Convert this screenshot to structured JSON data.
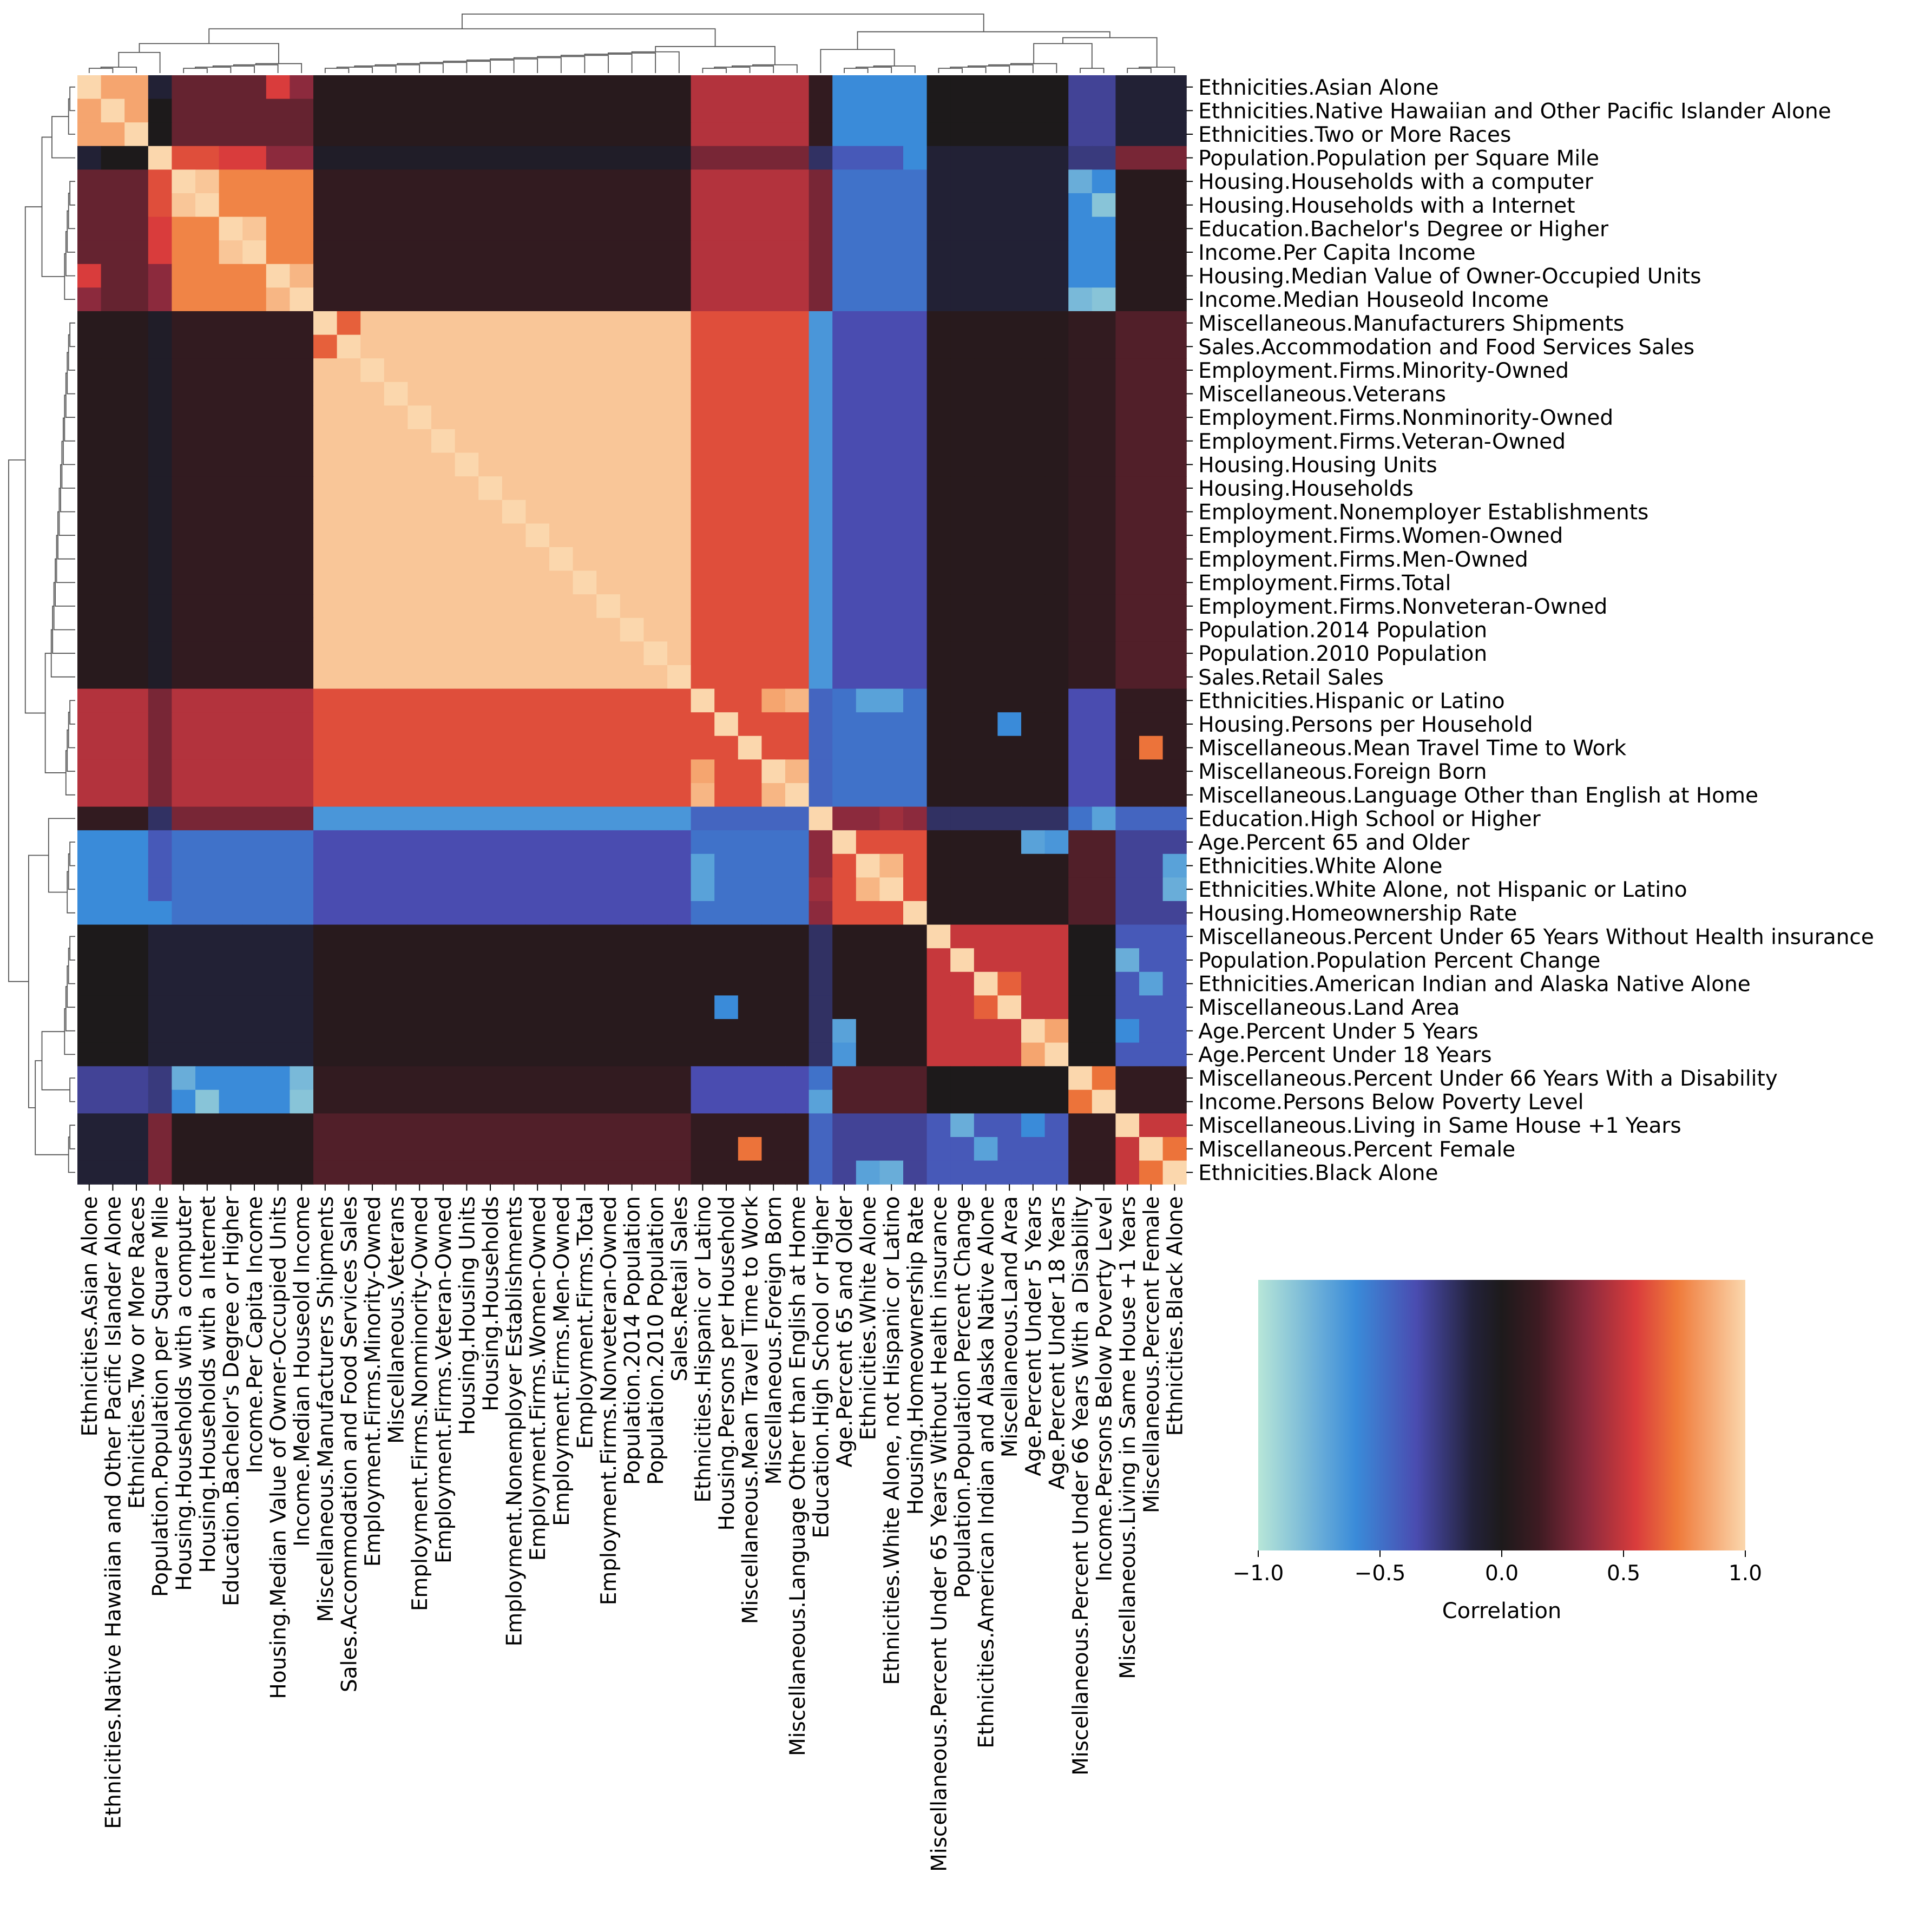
{
  "chart_data": {
    "type": "heatmap",
    "title": "",
    "labels": [
      "Ethnicities.Asian Alone",
      "Ethnicities.Native Hawaiian and Other Pacific Islander Alone",
      "Ethnicities.Two or More Races",
      "Population.Population per Square Mile",
      "Housing.Households with a computer",
      "Housing.Households with a Internet",
      "Education.Bachelor's Degree or Higher",
      "Income.Per Capita Income",
      "Housing.Median Value of Owner-Occupied Units",
      "Income.Median Houseold Income",
      "Miscellaneous.Manufacturers Shipments",
      "Sales.Accommodation and Food Services Sales",
      "Employment.Firms.Minority-Owned",
      "Miscellaneous.Veterans",
      "Employment.Firms.Nonminority-Owned",
      "Employment.Firms.Veteran-Owned",
      "Housing.Housing Units",
      "Housing.Households",
      "Employment.Nonemployer Establishments",
      "Employment.Firms.Women-Owned",
      "Employment.Firms.Men-Owned",
      "Employment.Firms.Total",
      "Employment.Firms.Nonveteran-Owned",
      "Population.2014 Population",
      "Population.2010 Population",
      "Sales.Retail Sales",
      "Ethnicities.Hispanic or Latino",
      "Housing.Persons per Household",
      "Miscellaneous.Mean Travel Time to Work",
      "Miscellaneous.Foreign Born",
      "Miscellaneous.Language Other than English at Home",
      "Education.High School or Higher",
      "Age.Percent 65 and Older",
      "Ethnicities.White Alone",
      "Ethnicities.White Alone, not Hispanic or Latino",
      "Housing.Homeownership Rate",
      "Miscellaneous.Percent Under 65 Years Without Health insurance",
      "Population.Population Percent Change",
      "Ethnicities.American Indian and Alaska Native Alone",
      "Miscellaneous.Land Area",
      "Age.Percent Under 5 Years",
      "Age.Percent Under 18 Years",
      "Miscellaneous.Percent Under 66 Years With a Disability",
      "Income.Persons Below Poverty Level",
      "Miscellaneous.Living in Same House +1 Years",
      "Miscellaneous.Percent Female",
      "Ethnicities.Black Alone"
    ],
    "groups": [
      {
        "indices": [
          0,
          1,
          2
        ],
        "within": 0.85,
        "default": 0.15
      },
      {
        "indices": [
          3
        ],
        "within": 1.0,
        "default": 0.0
      },
      {
        "indices": [
          4,
          5,
          6,
          7,
          8,
          9
        ],
        "within": 0.75,
        "default": 0.2
      },
      {
        "indices": [
          10,
          11,
          12,
          13,
          14,
          15,
          16,
          17,
          18,
          19,
          20,
          21,
          22,
          23,
          24,
          25
        ],
        "within": 0.95,
        "default": 0.2
      },
      {
        "indices": [
          26,
          27,
          28,
          29,
          30
        ],
        "within": 0.6,
        "default": 0.25
      },
      {
        "indices": [
          31
        ],
        "within": 1.0,
        "default": -0.3
      },
      {
        "indices": [
          32,
          33,
          34,
          35
        ],
        "within": 0.6,
        "default": -0.25
      },
      {
        "indices": [
          36,
          37,
          38,
          39,
          40,
          41
        ],
        "within": 0.5,
        "default": 0.1
      },
      {
        "indices": [
          42,
          43
        ],
        "within": 0.75,
        "default": -0.1
      },
      {
        "indices": [
          44,
          45,
          46
        ],
        "within": 0.5,
        "default": 0.1
      }
    ],
    "group_pairs": [
      {
        "a": 0,
        "b": 1,
        "value": 0.0
      },
      {
        "a": 0,
        "b": 2,
        "value": 0.25
      },
      {
        "a": 0,
        "b": 3,
        "value": 0.05
      },
      {
        "a": 0,
        "b": 4,
        "value": 0.45
      },
      {
        "a": 0,
        "b": 5,
        "value": 0.1
      },
      {
        "a": 0,
        "b": 6,
        "value": -0.6
      },
      {
        "a": 0,
        "b": 7,
        "value": 0.0
      },
      {
        "a": 0,
        "b": 8,
        "value": -0.3
      },
      {
        "a": 0,
        "b": 9,
        "value": -0.1
      },
      {
        "a": 1,
        "b": 2,
        "value": 0.6
      },
      {
        "a": 1,
        "b": 3,
        "value": -0.05
      },
      {
        "a": 1,
        "b": 4,
        "value": 0.3
      },
      {
        "a": 1,
        "b": 5,
        "value": -0.2
      },
      {
        "a": 1,
        "b": 6,
        "value": -0.4
      },
      {
        "a": 1,
        "b": 7,
        "value": -0.1
      },
      {
        "a": 1,
        "b": 8,
        "value": -0.25
      },
      {
        "a": 1,
        "b": 9,
        "value": 0.3
      },
      {
        "a": 2,
        "b": 3,
        "value": 0.1
      },
      {
        "a": 2,
        "b": 4,
        "value": 0.45
      },
      {
        "a": 2,
        "b": 5,
        "value": 0.3
      },
      {
        "a": 2,
        "b": 6,
        "value": -0.5
      },
      {
        "a": 2,
        "b": 7,
        "value": -0.1
      },
      {
        "a": 2,
        "b": 8,
        "value": -0.6
      },
      {
        "a": 2,
        "b": 9,
        "value": 0.05
      },
      {
        "a": 3,
        "b": 4,
        "value": 0.6
      },
      {
        "a": 3,
        "b": 5,
        "value": -0.65
      },
      {
        "a": 3,
        "b": 6,
        "value": -0.35
      },
      {
        "a": 3,
        "b": 7,
        "value": 0.05
      },
      {
        "a": 3,
        "b": 8,
        "value": 0.1
      },
      {
        "a": 3,
        "b": 9,
        "value": 0.2
      },
      {
        "a": 4,
        "b": 5,
        "value": -0.45
      },
      {
        "a": 4,
        "b": 6,
        "value": -0.5
      },
      {
        "a": 4,
        "b": 7,
        "value": 0.05
      },
      {
        "a": 4,
        "b": 8,
        "value": -0.35
      },
      {
        "a": 4,
        "b": 9,
        "value": 0.1
      },
      {
        "a": 5,
        "b": 6,
        "value": 0.35
      },
      {
        "a": 5,
        "b": 7,
        "value": -0.2
      },
      {
        "a": 5,
        "b": 8,
        "value": -0.5
      },
      {
        "a": 5,
        "b": 9,
        "value": -0.45
      },
      {
        "a": 6,
        "b": 7,
        "value": 0.05
      },
      {
        "a": 6,
        "b": 8,
        "value": 0.2
      },
      {
        "a": 6,
        "b": 9,
        "value": -0.3
      },
      {
        "a": 7,
        "b": 8,
        "value": 0.0
      },
      {
        "a": 7,
        "b": 9,
        "value": -0.4
      },
      {
        "a": 8,
        "b": 9,
        "value": 0.1
      }
    ],
    "cells": [
      {
        "r": 0,
        "c": 3,
        "value": -0.1
      },
      {
        "r": 0,
        "c": 8,
        "value": 0.55
      },
      {
        "r": 0,
        "c": 9,
        "value": 0.35
      },
      {
        "r": 3,
        "c": 6,
        "value": 0.55
      },
      {
        "r": 3,
        "c": 7,
        "value": 0.55
      },
      {
        "r": 3,
        "c": 8,
        "value": 0.35
      },
      {
        "r": 3,
        "c": 9,
        "value": 0.35
      },
      {
        "r": 3,
        "c": 35,
        "value": -0.6
      },
      {
        "r": 4,
        "c": 5,
        "value": 0.95
      },
      {
        "r": 6,
        "c": 7,
        "value": 0.95
      },
      {
        "r": 8,
        "c": 9,
        "value": 0.9
      },
      {
        "r": 4,
        "c": 42,
        "value": -0.75
      },
      {
        "r": 5,
        "c": 43,
        "value": -0.85
      },
      {
        "r": 9,
        "c": 42,
        "value": -0.8
      },
      {
        "r": 9,
        "c": 43,
        "value": -0.85
      },
      {
        "r": 10,
        "c": 11,
        "value": 0.65
      },
      {
        "r": 26,
        "c": 29,
        "value": 0.85
      },
      {
        "r": 26,
        "c": 30,
        "value": 0.9
      },
      {
        "r": 29,
        "c": 30,
        "value": 0.9
      },
      {
        "r": 26,
        "c": 33,
        "value": -0.7
      },
      {
        "r": 26,
        "c": 34,
        "value": -0.7
      },
      {
        "r": 27,
        "c": 39,
        "value": -0.6
      },
      {
        "r": 28,
        "c": 45,
        "value": 0.7
      },
      {
        "r": 31,
        "c": 34,
        "value": 0.4
      },
      {
        "r": 31,
        "c": 43,
        "value": -0.7
      },
      {
        "r": 32,
        "c": 40,
        "value": -0.7
      },
      {
        "r": 32,
        "c": 41,
        "value": -0.65
      },
      {
        "r": 33,
        "c": 34,
        "value": 0.9
      },
      {
        "r": 33,
        "c": 46,
        "value": -0.7
      },
      {
        "r": 34,
        "c": 46,
        "value": -0.75
      },
      {
        "r": 37,
        "c": 44,
        "value": -0.75
      },
      {
        "r": 38,
        "c": 39,
        "value": 0.65
      },
      {
        "r": 40,
        "c": 41,
        "value": 0.85
      },
      {
        "r": 42,
        "c": 43,
        "value": 0.7
      },
      {
        "r": 45,
        "c": 46,
        "value": 0.7
      },
      {
        "r": 38,
        "c": 45,
        "value": -0.7
      },
      {
        "r": 40,
        "c": 44,
        "value": -0.6
      }
    ],
    "colorbar": {
      "label": "Correlation",
      "ticks": [
        "−1.0",
        "−0.5",
        "0.0",
        "0.5",
        "1.0"
      ],
      "tick_values": [
        -1.0,
        -0.5,
        0.0,
        0.5,
        1.0
      ]
    },
    "vlim": [
      -1,
      1
    ],
    "colormap_stops": [
      {
        "v": -1.0,
        "color": "#b7e6d8"
      },
      {
        "v": -0.6,
        "color": "#3a8bd9"
      },
      {
        "v": -0.35,
        "color": "#4a4cb0"
      },
      {
        "v": -0.12,
        "color": "#23223a"
      },
      {
        "v": 0.0,
        "color": "#1d1a1b"
      },
      {
        "v": 0.15,
        "color": "#3d1b22"
      },
      {
        "v": 0.35,
        "color": "#8c2a3d"
      },
      {
        "v": 0.55,
        "color": "#d93c3c"
      },
      {
        "v": 0.72,
        "color": "#ef7a3a"
      },
      {
        "v": 1.0,
        "color": "#fbd7ad"
      }
    ],
    "dendrogram": "hierarchical clustering tree on top and left"
  }
}
